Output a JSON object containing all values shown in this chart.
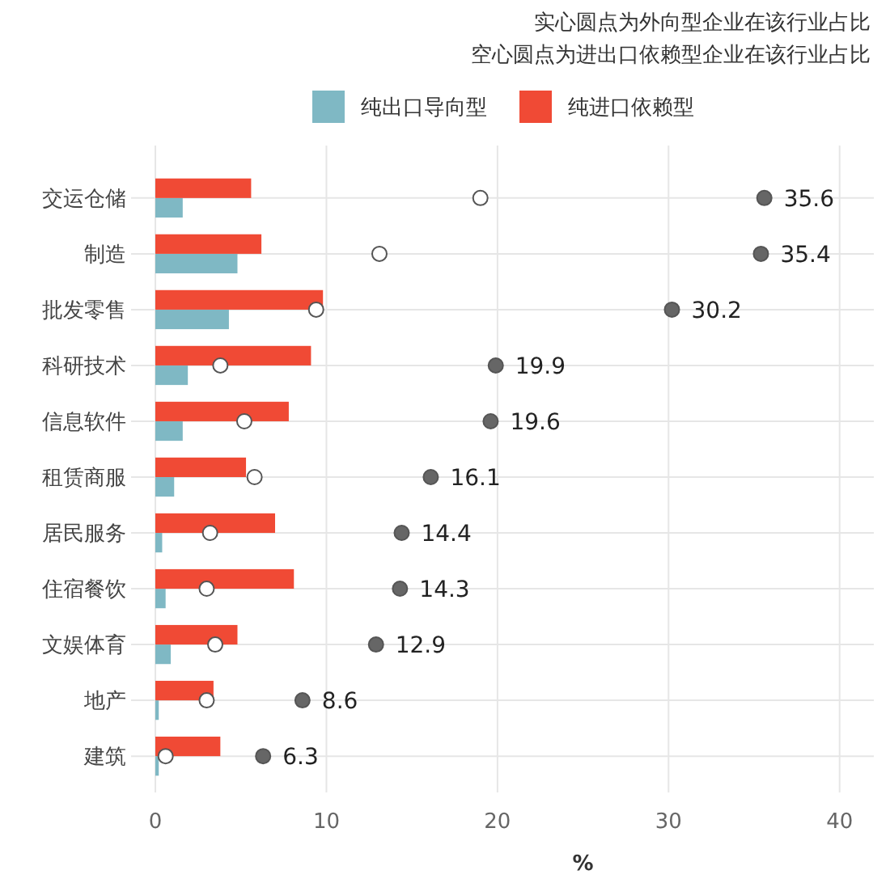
{
  "chart_data": {
    "type": "bar",
    "orientation": "horizontal",
    "title": "实心圆点为外向型企业在该行业占比",
    "subtitle": "空心圆点为进出口依赖型企业在该行业占比",
    "xlabel": "%",
    "categories": [
      "交运仓储",
      "制造",
      "批发零售",
      "科研技术",
      "信息软件",
      "租赁商服",
      "居民服务",
      "住宿餐饮",
      "文娱体育",
      "地产",
      "建筑"
    ],
    "series": [
      {
        "name": "纯出口导向型",
        "color": "#7fb8c4",
        "values": [
          1.6,
          4.8,
          4.3,
          1.9,
          1.6,
          1.1,
          0.4,
          0.6,
          0.9,
          0.2,
          0.2
        ]
      },
      {
        "name": "纯进口依赖型",
        "color": "#f04a35",
        "values": [
          5.6,
          6.2,
          9.8,
          9.1,
          7.8,
          5.3,
          7.0,
          8.1,
          4.8,
          3.4,
          3.8
        ]
      },
      {
        "type": "scatter",
        "color": "#666666",
        "marker": "circle",
        "values": [
          35.6,
          35.4,
          30.2,
          19.9,
          19.6,
          16.1,
          14.4,
          14.3,
          12.9,
          8.6,
          6.3
        ],
        "value_labels": [
          "35.6",
          "35.4",
          "30.2",
          "19.9",
          "19.6",
          "16.1",
          "14.4",
          "14.3",
          "12.9",
          "8.6",
          "6.3"
        ]
      },
      {
        "type": "scatter",
        "color": "#ffffff",
        "marker": "circle",
        "values": [
          19.0,
          13.1,
          9.4,
          3.8,
          5.2,
          5.8,
          3.2,
          3.0,
          3.5,
          3.0,
          0.6
        ]
      }
    ],
    "xlim": [
      0,
      42
    ],
    "xticks": [
      0,
      10,
      20,
      30,
      40
    ],
    "grid": true,
    "legend": "top"
  }
}
